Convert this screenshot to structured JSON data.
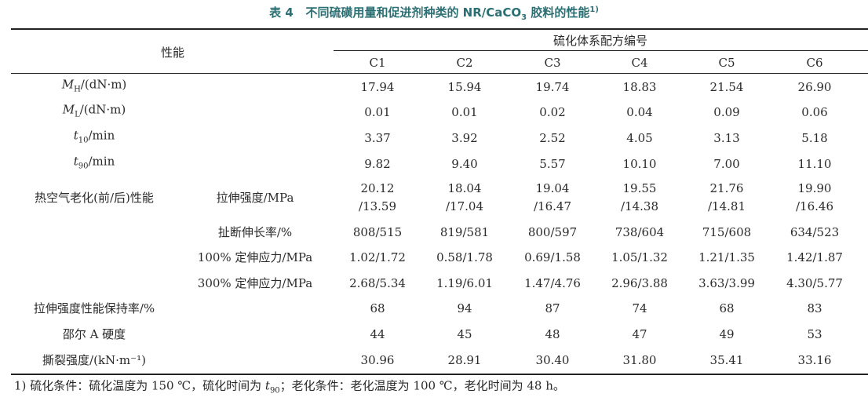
{
  "title": {
    "number": "表 4",
    "text": "不同硫磺用量和促进剂种类的 NR/CaCO",
    "subscript": "3",
    "text_end": "胶料的性能",
    "note": "1)"
  },
  "header": {
    "property": "性能",
    "group": "硫化体系配方编号",
    "columns": [
      "C1",
      "C2",
      "C3",
      "C4",
      "C5",
      "C6"
    ]
  },
  "rows": [
    {
      "symbol": "M",
      "subscript": "H",
      "unit": "/(dN·m)",
      "values": [
        "17.94",
        "15.94",
        "19.74",
        "18.83",
        "21.54",
        "26.90"
      ]
    },
    {
      "symbol": "M",
      "subscript": "L",
      "unit": "/(dN·m)",
      "values": [
        "0.01",
        "0.01",
        "0.02",
        "0.04",
        "0.09",
        "0.06"
      ]
    },
    {
      "symbol": "t",
      "subscript": "10",
      "unit": "/min",
      "values": [
        "3.37",
        "3.92",
        "2.52",
        "4.05",
        "3.13",
        "5.18"
      ]
    },
    {
      "symbol": "t",
      "subscript": "90",
      "unit": "/min",
      "values": [
        "9.82",
        "9.40",
        "5.57",
        "10.10",
        "7.00",
        "11.10"
      ]
    },
    {
      "label": "热空气老化(前/后)性能",
      "sublabel": "拉伸强度/MPa",
      "values": [
        [
          "20.12",
          "/13.59"
        ],
        [
          "18.04",
          "/17.04"
        ],
        [
          "19.04",
          "/16.47"
        ],
        [
          "19.55",
          "/14.38"
        ],
        [
          "21.76",
          "/14.81"
        ],
        [
          "19.90",
          "/16.46"
        ]
      ]
    },
    {
      "sublabel": "扯断伸长率/%",
      "values": [
        "808/515",
        "819/581",
        "800/597",
        "738/604",
        "715/608",
        "634/523"
      ]
    },
    {
      "sublabel": "100% 定伸应力/MPa",
      "values": [
        "1.02/1.72",
        "0.58/1.78",
        "0.69/1.58",
        "1.05/1.32",
        "1.21/1.35",
        "1.42/1.87"
      ]
    },
    {
      "sublabel": "300% 定伸应力/MPa",
      "values": [
        "2.68/5.34",
        "1.19/6.01",
        "1.47/4.76",
        "2.96/3.88",
        "3.63/3.99",
        "4.30/5.77"
      ]
    },
    {
      "label": "拉伸强度性能保持率/%",
      "values": [
        "68",
        "94",
        "87",
        "74",
        "68",
        "83"
      ]
    },
    {
      "label": "邵尔 A 硬度",
      "values": [
        "44",
        "45",
        "48",
        "47",
        "49",
        "53"
      ]
    },
    {
      "label": "撕裂强度/(kN·m⁻¹)",
      "values": [
        "30.96",
        "28.91",
        "30.40",
        "31.80",
        "35.41",
        "33.16"
      ]
    }
  ],
  "footnote": {
    "mark": "1)",
    "text": "硫化条件：硫化温度为 150 ℃，硫化时间为 ",
    "symbol": "t",
    "subscript": "90",
    "text_end": "；老化条件：老化温度为 100 ℃，老化时间为 48 h。"
  }
}
